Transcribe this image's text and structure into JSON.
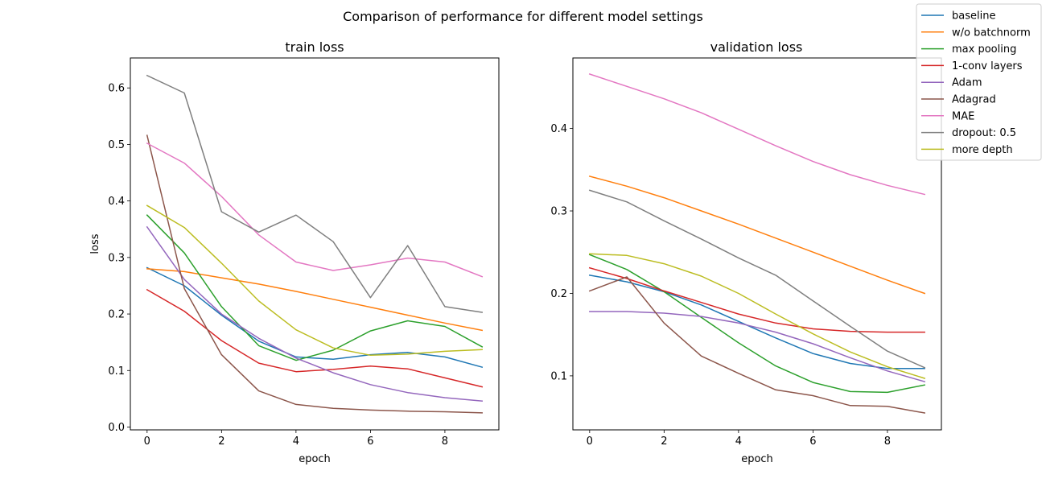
{
  "figure": {
    "suptitle": "Comparison of performance for different model settings"
  },
  "legend": {
    "placement": "upper-right of figure",
    "entries": [
      {
        "name": "baseline",
        "color": "#1f77b4"
      },
      {
        "name": "w/o batchnorm",
        "color": "#ff7f0e"
      },
      {
        "name": "max pooling",
        "color": "#2ca02c"
      },
      {
        "name": "1-conv layers",
        "color": "#d62728"
      },
      {
        "name": "Adam",
        "color": "#9467bd"
      },
      {
        "name": "Adagrad",
        "color": "#8c564b"
      },
      {
        "name": "MAE",
        "color": "#e377c2"
      },
      {
        "name": "dropout: 0.5",
        "color": "#7f7f7f"
      },
      {
        "name": "more depth",
        "color": "#bcbd22"
      }
    ]
  },
  "chart_data": [
    {
      "type": "line",
      "title": "train loss",
      "xlabel": "epoch",
      "ylabel": "loss",
      "xlim": [
        -0.45,
        9.45
      ],
      "ylim": [
        -0.005,
        0.653
      ],
      "xticks": [
        0,
        2,
        4,
        6,
        8
      ],
      "xtick_labels": [
        "0",
        "2",
        "4",
        "6",
        "8"
      ],
      "yticks": [
        0.0,
        0.1,
        0.2,
        0.3,
        0.4,
        0.5,
        0.6
      ],
      "ytick_labels": [
        "0.0",
        "0.1",
        "0.2",
        "0.3",
        "0.4",
        "0.5",
        "0.6"
      ],
      "grid": false,
      "x": [
        0,
        1,
        2,
        3,
        4,
        5,
        6,
        7,
        8,
        9
      ],
      "series": [
        {
          "name": "baseline",
          "color": "#1f77b4",
          "values": [
            0.282,
            0.25,
            0.198,
            0.152,
            0.124,
            0.12,
            0.128,
            0.132,
            0.124,
            0.106
          ]
        },
        {
          "name": "w/o batchnorm",
          "color": "#ff7f0e",
          "values": [
            0.28,
            0.275,
            0.264,
            0.253,
            0.24,
            0.226,
            0.212,
            0.198,
            0.184,
            0.171
          ]
        },
        {
          "name": "max pooling",
          "color": "#2ca02c",
          "values": [
            0.375,
            0.308,
            0.213,
            0.144,
            0.118,
            0.136,
            0.17,
            0.188,
            0.178,
            0.142
          ]
        },
        {
          "name": "1-conv layers",
          "color": "#d62728",
          "values": [
            0.243,
            0.205,
            0.153,
            0.113,
            0.098,
            0.102,
            0.108,
            0.103,
            0.087,
            0.071
          ]
        },
        {
          "name": "Adam",
          "color": "#9467bd",
          "values": [
            0.354,
            0.261,
            0.2,
            0.157,
            0.122,
            0.096,
            0.075,
            0.061,
            0.052,
            0.046
          ]
        },
        {
          "name": "Adagrad",
          "color": "#8c564b",
          "values": [
            0.516,
            0.245,
            0.128,
            0.064,
            0.04,
            0.033,
            0.03,
            0.028,
            0.027,
            0.025
          ]
        },
        {
          "name": "MAE",
          "color": "#e377c2",
          "values": [
            0.502,
            0.467,
            0.408,
            0.34,
            0.292,
            0.277,
            0.287,
            0.299,
            0.292,
            0.266
          ]
        },
        {
          "name": "dropout: 0.5",
          "color": "#7f7f7f",
          "values": [
            0.622,
            0.591,
            0.381,
            0.345,
            0.375,
            0.328,
            0.229,
            0.321,
            0.213,
            0.203
          ]
        },
        {
          "name": "more depth",
          "color": "#bcbd22",
          "values": [
            0.392,
            0.353,
            0.29,
            0.223,
            0.172,
            0.14,
            0.127,
            0.129,
            0.134,
            0.137
          ]
        }
      ]
    },
    {
      "type": "line",
      "title": "validation loss",
      "xlabel": "epoch",
      "ylabel": "",
      "xlim": [
        -0.45,
        9.45
      ],
      "ylim": [
        0.0345,
        0.4855
      ],
      "xticks": [
        0,
        2,
        4,
        6,
        8
      ],
      "xtick_labels": [
        "0",
        "2",
        "4",
        "6",
        "8"
      ],
      "yticks": [
        0.1,
        0.2,
        0.3,
        0.4
      ],
      "ytick_labels": [
        "0.1",
        "0.2",
        "0.3",
        "0.4"
      ],
      "grid": false,
      "x": [
        0,
        1,
        2,
        3,
        4,
        5,
        6,
        7,
        8,
        9
      ],
      "series": [
        {
          "name": "baseline",
          "color": "#1f77b4",
          "values": [
            0.222,
            0.214,
            0.202,
            0.186,
            0.166,
            0.146,
            0.127,
            0.115,
            0.109,
            0.109
          ]
        },
        {
          "name": "w/o batchnorm",
          "color": "#ff7f0e",
          "values": [
            0.342,
            0.33,
            0.316,
            0.3,
            0.284,
            0.267,
            0.25,
            0.233,
            0.216,
            0.2
          ]
        },
        {
          "name": "max pooling",
          "color": "#2ca02c",
          "values": [
            0.247,
            0.229,
            0.202,
            0.171,
            0.14,
            0.112,
            0.092,
            0.081,
            0.08,
            0.089
          ]
        },
        {
          "name": "1-conv layers",
          "color": "#d62728",
          "values": [
            0.231,
            0.218,
            0.203,
            0.189,
            0.175,
            0.164,
            0.157,
            0.154,
            0.153,
            0.153
          ]
        },
        {
          "name": "Adam",
          "color": "#9467bd",
          "values": [
            0.178,
            0.178,
            0.176,
            0.172,
            0.164,
            0.153,
            0.139,
            0.122,
            0.106,
            0.093
          ]
        },
        {
          "name": "Adagrad",
          "color": "#8c564b",
          "values": [
            0.203,
            0.22,
            0.164,
            0.124,
            0.103,
            0.083,
            0.076,
            0.064,
            0.063,
            0.055
          ]
        },
        {
          "name": "MAE",
          "color": "#e377c2",
          "values": [
            0.466,
            0.451,
            0.436,
            0.419,
            0.399,
            0.379,
            0.36,
            0.344,
            0.331,
            0.32
          ]
        },
        {
          "name": "dropout: 0.5",
          "color": "#7f7f7f",
          "values": [
            0.325,
            0.311,
            0.288,
            0.266,
            0.243,
            0.222,
            0.191,
            0.16,
            0.13,
            0.11
          ]
        },
        {
          "name": "more depth",
          "color": "#bcbd22",
          "values": [
            0.248,
            0.246,
            0.236,
            0.221,
            0.2,
            0.175,
            0.151,
            0.129,
            0.111,
            0.097
          ]
        }
      ]
    }
  ]
}
